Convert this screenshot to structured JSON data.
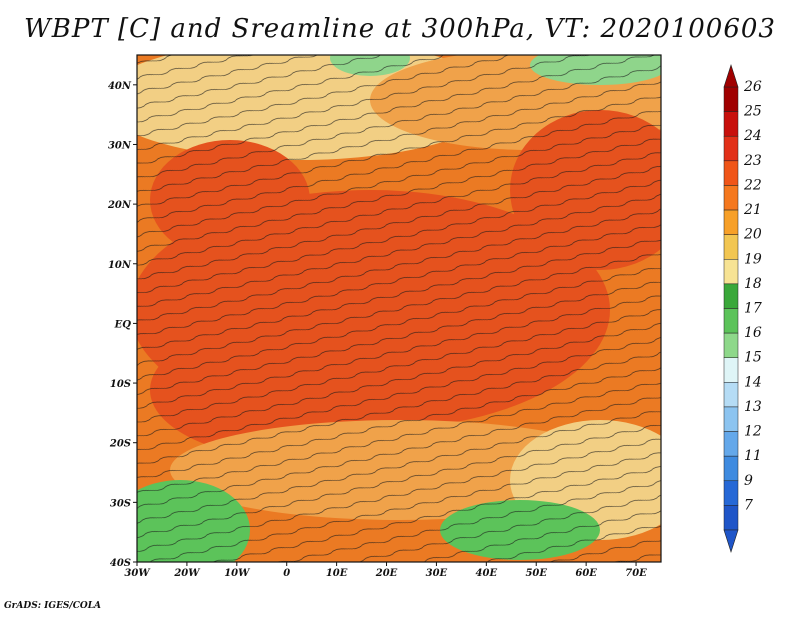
{
  "title": "WBPT [C] and Sreamline at 300hPa, VT: 2020100603",
  "credit": "GrADS: IGES/COLA",
  "map": {
    "x_axis_labels": [
      "30W",
      "20W",
      "10W",
      "0",
      "10E",
      "20E",
      "30E",
      "40E",
      "50E",
      "60E",
      "70E"
    ],
    "y_axis_labels": [
      "40N",
      "30N",
      "20N",
      "10N",
      "EQ",
      "10S",
      "20S",
      "30S",
      "40S"
    ],
    "lon_range": [
      -30,
      75
    ],
    "lat_range": [
      -40,
      45
    ]
  },
  "colorbar": {
    "labels": [
      "26",
      "25",
      "24",
      "23",
      "22",
      "21",
      "20",
      "19",
      "18",
      "17",
      "16",
      "15",
      "14",
      "13",
      "12",
      "11",
      "9",
      "7"
    ],
    "colors": [
      "#a00000",
      "#c8100c",
      "#e23018",
      "#f05518",
      "#f5781e",
      "#f7a028",
      "#f2c652",
      "#f7e394",
      "#3aa83a",
      "#5cc35a",
      "#8ed88a",
      "#dff5f7",
      "#b5dcf5",
      "#8cc4f0",
      "#64a8ea",
      "#3f8be0",
      "#2668d6",
      "#1f55c8"
    ]
  },
  "regions": {
    "colors": {
      "hot": "#e5521e",
      "warm": "#eb7a23",
      "mild": "#f0a24a",
      "cool": "#f2cf84",
      "green": "#5cc35a",
      "lightgreen": "#8fd58b"
    }
  }
}
